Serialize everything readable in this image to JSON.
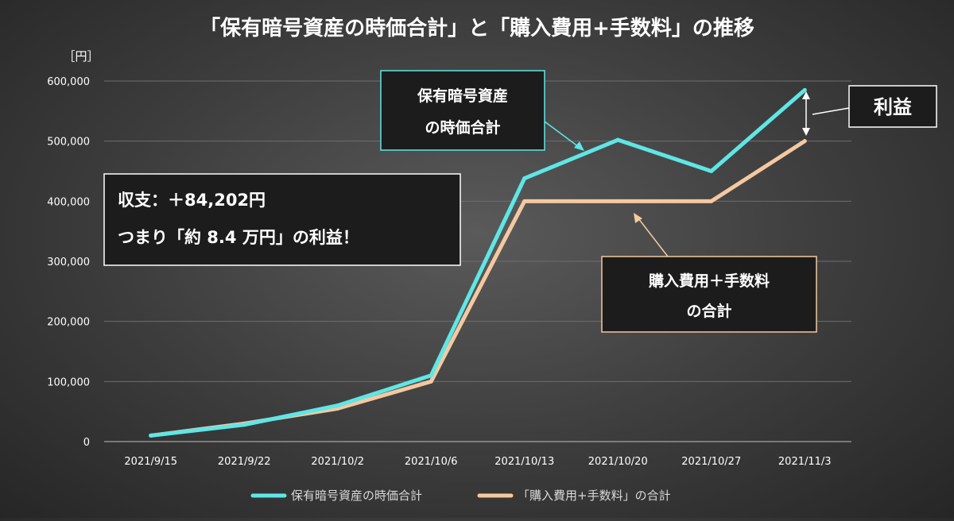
{
  "chart_data": {
    "type": "line",
    "title": "「保有暗号資産の時価合計」と「購入費用+手数料」の推移",
    "unit_label": "［円］",
    "categories": [
      "2021/9/15",
      "2021/9/22",
      "2021/10/2",
      "2021/10/6",
      "2021/10/13",
      "2021/10/20",
      "2021/10/27",
      "2021/11/3"
    ],
    "y_ticks": [
      "0",
      "100,000",
      "200,000",
      "300,000",
      "400,000",
      "500,000",
      "600,000"
    ],
    "ylim": [
      0,
      600000
    ],
    "grid": true,
    "legend_position": "bottom",
    "series": [
      {
        "name": "保有暗号資産の時価合計",
        "color": "#5fe6e6",
        "values": [
          10000,
          28000,
          60000,
          110000,
          438000,
          502000,
          450000,
          585000
        ]
      },
      {
        "name": "「購入費用+手数料」の合計",
        "color": "#f5c8a0",
        "values": [
          10000,
          30000,
          55000,
          100000,
          400000,
          400000,
          400000,
          500000
        ]
      }
    ],
    "annotations": {
      "summary_line1": "収支：＋84,202円",
      "summary_line2": "つまり「約 8.4 万円」の利益！",
      "market_box_line1": "保有暗号資産",
      "market_box_line2": "の時価合計",
      "cost_box_line1": "購入費用＋手数料",
      "cost_box_line2": "の合計",
      "profit_label": "利益"
    }
  }
}
